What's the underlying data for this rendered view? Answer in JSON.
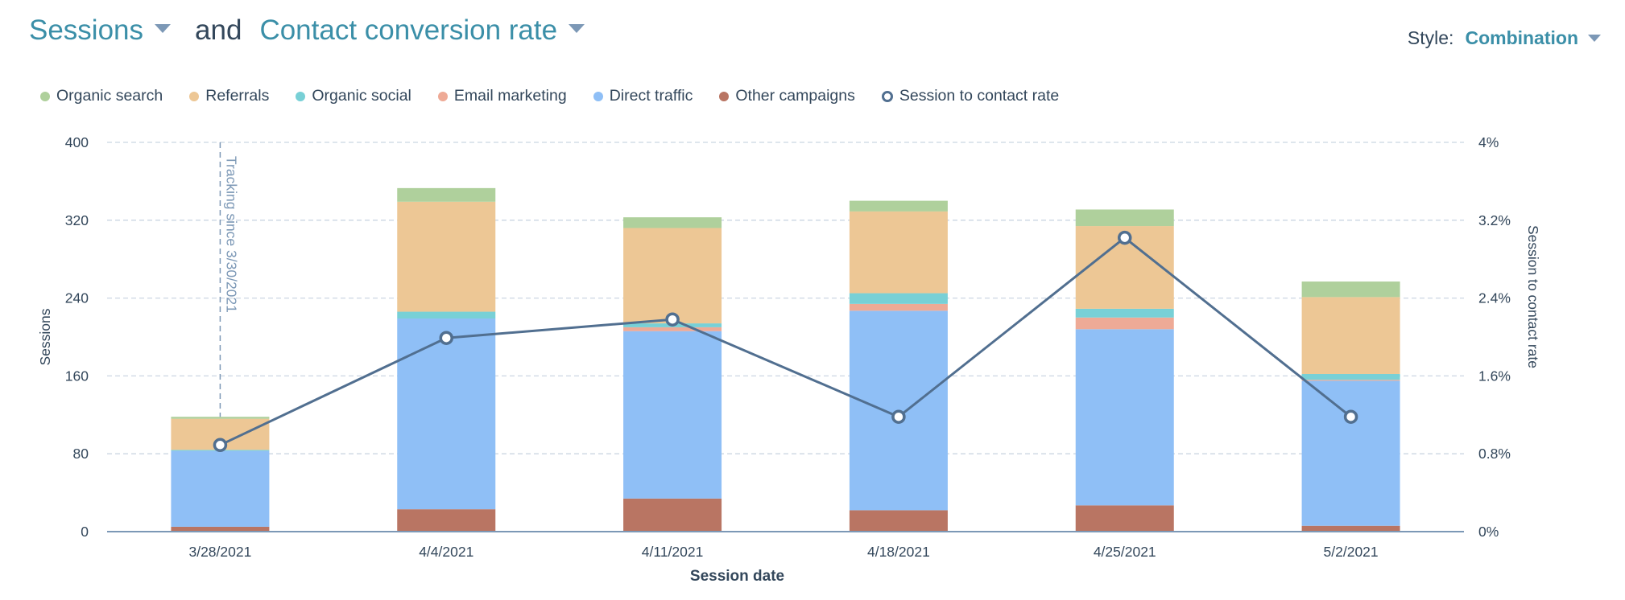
{
  "header": {
    "primary_metric": "Sessions",
    "connector": "and",
    "secondary_metric": "Contact conversion rate",
    "style_label": "Style:",
    "style_value": "Combination"
  },
  "colors": {
    "accent": "#3b8fa8",
    "text": "#33475b",
    "caret": "#7c98b6",
    "grid": "#cbd6e2",
    "axis": "#7c98b6",
    "line": "#516f90"
  },
  "chart_data": {
    "type": "bar",
    "subtype": "stacked-bar-with-line",
    "title": "Sessions and Contact conversion rate",
    "xlabel": "Session date",
    "ylabel": "Sessions",
    "y2label": "Session to contact rate",
    "categories": [
      "3/28/2021",
      "4/4/2021",
      "4/11/2021",
      "4/18/2021",
      "4/25/2021",
      "5/2/2021"
    ],
    "ylim": [
      0,
      400
    ],
    "yticks": [
      "0",
      "80",
      "160",
      "240",
      "320",
      "400"
    ],
    "y2lim": [
      0,
      4
    ],
    "y2ticks": [
      "0%",
      "0.8%",
      "1.6%",
      "2.4%",
      "3.2%",
      "4%"
    ],
    "grid": true,
    "legend_position": "top-left",
    "series": [
      {
        "name": "Other campaigns",
        "color": "#b97563",
        "values": [
          5,
          23,
          34,
          22,
          27,
          6
        ]
      },
      {
        "name": "Direct traffic",
        "color": "#8fbff6",
        "values": [
          78,
          196,
          172,
          205,
          181,
          149
        ]
      },
      {
        "name": "Email marketing",
        "color": "#eeaa96",
        "values": [
          0,
          0,
          4,
          7,
          12,
          1
        ]
      },
      {
        "name": "Organic social",
        "color": "#78d0d6",
        "values": [
          1,
          7,
          4,
          11,
          9,
          6
        ]
      },
      {
        "name": "Referrals",
        "color": "#edc795",
        "values": [
          32,
          113,
          98,
          84,
          85,
          79
        ]
      },
      {
        "name": "Organic search",
        "color": "#afd09c",
        "values": [
          2,
          14,
          11,
          11,
          17,
          16
        ]
      }
    ],
    "line_series": {
      "name": "Session to contact rate",
      "color": "#516f90",
      "axis": "right",
      "unit": "%",
      "values": [
        0.89,
        1.99,
        2.18,
        1.18,
        3.02,
        1.18
      ]
    },
    "legend": [
      {
        "name": "Organic search",
        "color": "#afd09c",
        "marker": "dot"
      },
      {
        "name": "Referrals",
        "color": "#edc795",
        "marker": "dot"
      },
      {
        "name": "Organic social",
        "color": "#78d0d6",
        "marker": "dot"
      },
      {
        "name": "Email marketing",
        "color": "#eeaa96",
        "marker": "dot"
      },
      {
        "name": "Direct traffic",
        "color": "#8fbff6",
        "marker": "dot"
      },
      {
        "name": "Other campaigns",
        "color": "#b97563",
        "marker": "dot"
      },
      {
        "name": "Session to contact rate",
        "color": "#516f90",
        "marker": "ring"
      }
    ],
    "annotations": [
      {
        "text": "Tracking since 3/30/2021",
        "at_category": "3/28/2021",
        "style": "dashed-vertical"
      }
    ]
  }
}
